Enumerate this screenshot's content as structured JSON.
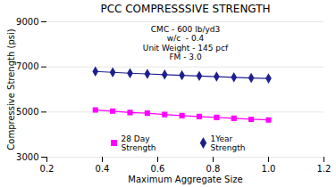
{
  "chart_data": {
    "type": "line",
    "title": "PCC COMPRESSSIVE STRENGTH",
    "xlabel": "Maximum Aggregate Size",
    "ylabel": "Compressive Strength (psi)",
    "x": [
      0.375,
      0.4375,
      0.5,
      0.5625,
      0.625,
      0.6875,
      0.75,
      0.8125,
      0.875,
      0.9375,
      1.0
    ],
    "series": [
      {
        "name": "28 Day\nStrength",
        "color": "#FF00FF",
        "marker": "square",
        "values": [
          5090,
          5040,
          4980,
          4950,
          4890,
          4840,
          4800,
          4760,
          4720,
          4680,
          4650
        ]
      },
      {
        "name": "1Year\nStrength",
        "color": "#1F1F8F",
        "marker": "diamond",
        "values": [
          6800,
          6760,
          6720,
          6690,
          6660,
          6630,
          6600,
          6570,
          6540,
          6510,
          6490
        ]
      }
    ],
    "xlim": [
      0.2,
      1.2
    ],
    "ylim": [
      3000,
      9000
    ],
    "xticks": [
      0.2,
      0.4,
      0.6,
      0.8,
      {
        "value": 1.0,
        "label": "1.0"
      },
      1.2
    ],
    "yticks": [
      3000,
      5000,
      7000,
      9000
    ],
    "grid": "y",
    "legend": "bottom",
    "annotation": "CMC - 600 lb/yd3\nw/c  - 0.4\nUnit Weight - 145 pcf\nFM - 3.0"
  }
}
